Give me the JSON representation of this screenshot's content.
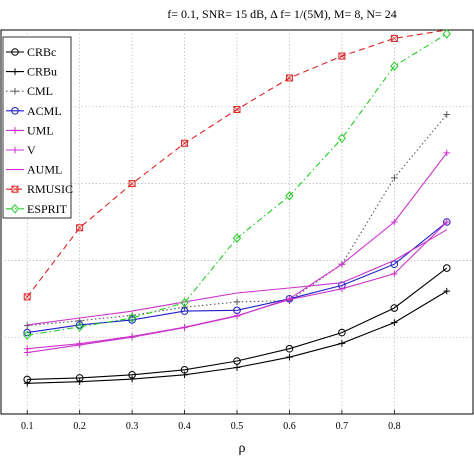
{
  "chart_data": {
    "type": "line",
    "title": "f= 0.1, SNR= 15 dB, Δ f= 1/(5M), M= 8, N= 24",
    "xlabel": "ρ",
    "ylabel": "",
    "xlim": [
      0.05,
      0.95
    ],
    "ylim": [
      0,
      1
    ],
    "xticks": [
      "0.1",
      "0.2",
      "0.3",
      "0.4",
      "0.5",
      "0.6",
      "0.7",
      "0.8"
    ],
    "grid": true,
    "legend_position": "top-left",
    "x": [
      0.1,
      0.2,
      0.3,
      0.4,
      0.5,
      0.6,
      0.7,
      0.8,
      0.9
    ],
    "series": [
      {
        "name": "CRBc",
        "color": "#000000",
        "dash": "",
        "marker": "circle",
        "values": [
          0.09,
          0.094,
          0.102,
          0.115,
          0.138,
          0.17,
          0.212,
          0.276,
          0.38
        ]
      },
      {
        "name": "CRBu",
        "color": "#000000",
        "dash": "",
        "marker": "plus",
        "values": [
          0.08,
          0.084,
          0.091,
          0.102,
          0.121,
          0.148,
          0.184,
          0.238,
          0.32
        ]
      },
      {
        "name": "CML",
        "color": "#5a5a5a",
        "dash": "1.5 2.5",
        "marker": "plus",
        "values": [
          0.23,
          0.243,
          0.257,
          0.278,
          0.292,
          0.295,
          0.39,
          0.615,
          0.78
        ]
      },
      {
        "name": "ACML",
        "color": "#1d1dc8",
        "dash": "",
        "marker": "circle",
        "values": [
          0.212,
          0.232,
          0.245,
          0.268,
          0.27,
          0.3,
          0.335,
          0.39,
          0.5
        ]
      },
      {
        "name": "UML",
        "color": "#cc33cc",
        "dash": "",
        "marker": "plus",
        "values": [
          0.17,
          0.183,
          0.202,
          0.226,
          0.256,
          0.298,
          0.326,
          0.365,
          0.5
        ]
      },
      {
        "name": "V",
        "color": "#cc33cc",
        "dash": "",
        "marker": "plus",
        "values": [
          0.16,
          0.18,
          0.2,
          0.225,
          0.255,
          0.3,
          0.39,
          0.5,
          0.68
        ]
      },
      {
        "name": "AUML",
        "color": "#cc33cc",
        "dash": "",
        "marker": "none",
        "values": [
          0.232,
          0.25,
          0.268,
          0.292,
          0.315,
          0.328,
          0.342,
          0.4,
          0.48
        ]
      },
      {
        "name": "RMUSIC",
        "color": "#dd2222",
        "dash": "6 4",
        "marker": "square",
        "values": [
          0.305,
          0.485,
          0.6,
          0.705,
          0.793,
          0.875,
          0.932,
          0.978,
          1.0
        ]
      },
      {
        "name": "ESPRIT",
        "color": "#22cc22",
        "dash": "6 3 1.5 3",
        "marker": "diamond",
        "values": [
          0.205,
          0.227,
          0.25,
          0.29,
          0.458,
          0.568,
          0.718,
          0.906,
          0.99
        ]
      }
    ]
  }
}
